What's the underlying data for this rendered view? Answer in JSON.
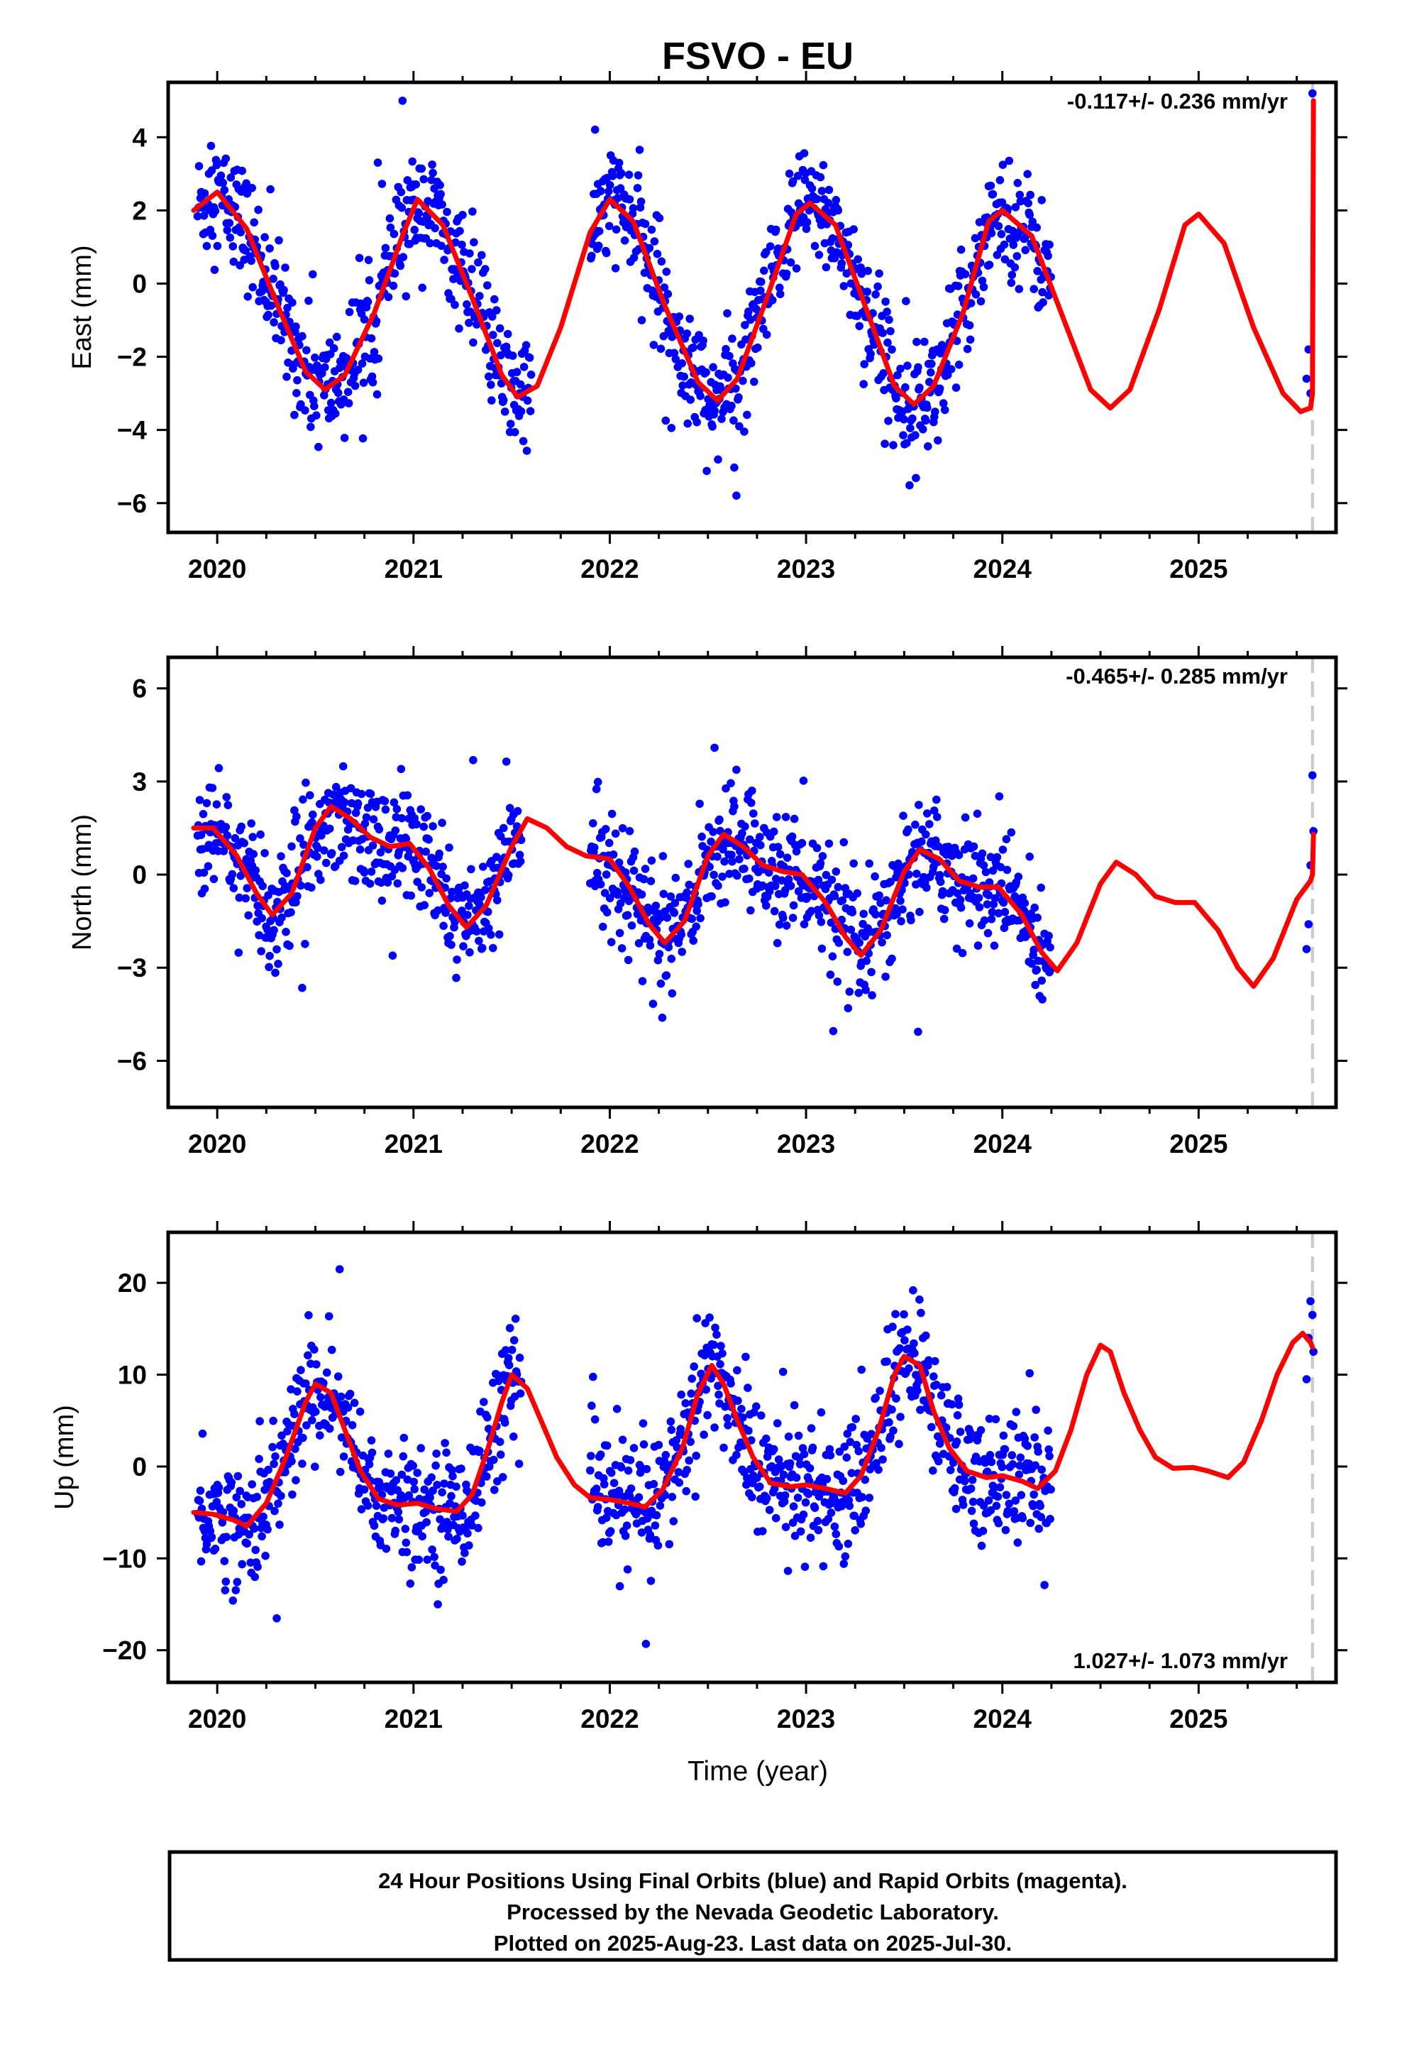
{
  "figure": {
    "title": "FSVO - EU",
    "footer": [
      "24 Hour Positions Using Final Orbits (blue) and Rapid Orbits (magenta).",
      "Processed by the Nevada Geodetic Laboratory.",
      "Plotted on 2025-Aug-23. Last data on 2025-Jul-30."
    ],
    "colors": {
      "observations": "#0000ff",
      "model": "#ff0000",
      "last_data_marker": "#c8c8c8",
      "frame": "#000000"
    }
  },
  "chart_data": [
    {
      "type": "scatter",
      "panel": "east",
      "ylabel": "East (mm)",
      "xlabel": "",
      "rate": "-0.117+/- 0.236 mm/yr",
      "rate_position": "top-right",
      "xlim": [
        2019.75,
        2025.7
      ],
      "ylim": [
        -6.8,
        5.5
      ],
      "x_ticks": [
        "2020",
        "2021",
        "2022",
        "2023",
        "2024",
        "2025"
      ],
      "y_ticks": [
        "4",
        "2",
        "0",
        "-2",
        "-4",
        "-6"
      ],
      "y_tick_values": [
        4,
        2,
        0,
        -2,
        -4,
        -6
      ],
      "last_data_epoch": 2025.58,
      "series": [
        {
          "kind": "observations",
          "color": "#0000ff",
          "segments": [
            [
              2019.9,
              2021.6
            ],
            [
              2021.9,
              2024.25
            ]
          ],
          "extra": [
            [
              2025.55,
              -2.6
            ],
            [
              2025.56,
              -1.8
            ],
            [
              2025.57,
              -3.0
            ],
            [
              2025.58,
              5.2
            ]
          ]
        },
        {
          "kind": "model",
          "color": "#ff0000",
          "points": [
            [
              2019.88,
              2.0
            ],
            [
              2020.0,
              2.5
            ],
            [
              2020.15,
              1.5
            ],
            [
              2020.3,
              -0.5
            ],
            [
              2020.45,
              -2.4
            ],
            [
              2020.55,
              -2.9
            ],
            [
              2020.65,
              -2.5
            ],
            [
              2020.8,
              -0.8
            ],
            [
              2020.95,
              1.4
            ],
            [
              2021.02,
              2.3
            ],
            [
              2021.15,
              1.6
            ],
            [
              2021.3,
              -0.4
            ],
            [
              2021.45,
              -2.5
            ],
            [
              2021.53,
              -3.1
            ],
            [
              2021.63,
              -2.8
            ],
            [
              2021.75,
              -1.2
            ],
            [
              2021.9,
              1.4
            ],
            [
              2022.0,
              2.3
            ],
            [
              2022.12,
              1.7
            ],
            [
              2022.28,
              -0.6
            ],
            [
              2022.45,
              -2.7
            ],
            [
              2022.55,
              -3.2
            ],
            [
              2022.65,
              -2.6
            ],
            [
              2022.8,
              -0.4
            ],
            [
              2022.95,
              1.9
            ],
            [
              2023.02,
              2.2
            ],
            [
              2023.15,
              1.6
            ],
            [
              2023.3,
              -0.6
            ],
            [
              2023.45,
              -2.8
            ],
            [
              2023.55,
              -3.3
            ],
            [
              2023.65,
              -2.8
            ],
            [
              2023.8,
              -0.8
            ],
            [
              2023.93,
              1.7
            ],
            [
              2024.0,
              2.0
            ],
            [
              2024.15,
              1.3
            ],
            [
              2024.3,
              -0.8
            ],
            [
              2024.45,
              -2.9
            ],
            [
              2024.55,
              -3.4
            ],
            [
              2024.65,
              -2.9
            ],
            [
              2024.8,
              -0.7
            ],
            [
              2024.93,
              1.6
            ],
            [
              2025.0,
              1.9
            ],
            [
              2025.13,
              1.1
            ],
            [
              2025.28,
              -1.2
            ],
            [
              2025.43,
              -3.0
            ],
            [
              2025.52,
              -3.5
            ],
            [
              2025.57,
              -3.4
            ],
            [
              2025.58,
              -3.0
            ],
            [
              2025.585,
              5.0
            ]
          ]
        }
      ]
    },
    {
      "type": "scatter",
      "panel": "north",
      "ylabel": "North (mm)",
      "xlabel": "",
      "rate": "-0.465+/- 0.285 mm/yr",
      "rate_position": "top-right",
      "xlim": [
        2019.75,
        2025.7
      ],
      "ylim": [
        -7.5,
        7.0
      ],
      "x_ticks": [
        "2020",
        "2021",
        "2022",
        "2023",
        "2024",
        "2025"
      ],
      "y_ticks": [
        "6",
        "3",
        "0",
        "-3",
        "-6"
      ],
      "y_tick_values": [
        6,
        3,
        0,
        -3,
        -6
      ],
      "last_data_epoch": 2025.58,
      "series": [
        {
          "kind": "observations",
          "color": "#0000ff",
          "segments": [
            [
              2019.9,
              2021.55
            ],
            [
              2021.9,
              2024.25
            ]
          ],
          "extra": [
            [
              2025.55,
              -2.4
            ],
            [
              2025.56,
              -1.6
            ],
            [
              2025.57,
              0.3
            ],
            [
              2025.58,
              3.2
            ],
            [
              2025.585,
              1.4
            ]
          ]
        },
        {
          "kind": "model",
          "color": "#ff0000",
          "points": [
            [
              2019.88,
              1.5
            ],
            [
              2019.98,
              1.5
            ],
            [
              2020.1,
              0.6
            ],
            [
              2020.2,
              -0.6
            ],
            [
              2020.28,
              -1.3
            ],
            [
              2020.38,
              -0.6
            ],
            [
              2020.5,
              1.5
            ],
            [
              2020.58,
              2.2
            ],
            [
              2020.68,
              1.8
            ],
            [
              2020.78,
              1.2
            ],
            [
              2020.88,
              0.9
            ],
            [
              2020.98,
              1.0
            ],
            [
              2021.08,
              0.2
            ],
            [
              2021.18,
              -1.0
            ],
            [
              2021.27,
              -1.7
            ],
            [
              2021.37,
              -1.0
            ],
            [
              2021.5,
              0.9
            ],
            [
              2021.58,
              1.8
            ],
            [
              2021.68,
              1.5
            ],
            [
              2021.78,
              0.9
            ],
            [
              2021.88,
              0.6
            ],
            [
              2022.0,
              0.5
            ],
            [
              2022.1,
              -0.4
            ],
            [
              2022.2,
              -1.6
            ],
            [
              2022.28,
              -2.2
            ],
            [
              2022.38,
              -1.5
            ],
            [
              2022.5,
              0.6
            ],
            [
              2022.58,
              1.3
            ],
            [
              2022.68,
              0.9
            ],
            [
              2022.78,
              0.3
            ],
            [
              2022.88,
              0.1
            ],
            [
              2022.98,
              0.0
            ],
            [
              2023.1,
              -0.9
            ],
            [
              2023.2,
              -2.0
            ],
            [
              2023.28,
              -2.6
            ],
            [
              2023.38,
              -1.8
            ],
            [
              2023.5,
              0.1
            ],
            [
              2023.58,
              0.8
            ],
            [
              2023.68,
              0.5
            ],
            [
              2023.78,
              -0.2
            ],
            [
              2023.88,
              -0.4
            ],
            [
              2023.98,
              -0.4
            ],
            [
              2024.1,
              -1.3
            ],
            [
              2024.2,
              -2.5
            ],
            [
              2024.28,
              -3.1
            ],
            [
              2024.38,
              -2.2
            ],
            [
              2024.5,
              -0.3
            ],
            [
              2024.58,
              0.4
            ],
            [
              2024.68,
              0.0
            ],
            [
              2024.78,
              -0.7
            ],
            [
              2024.88,
              -0.9
            ],
            [
              2024.98,
              -0.9
            ],
            [
              2025.1,
              -1.8
            ],
            [
              2025.2,
              -3.0
            ],
            [
              2025.28,
              -3.6
            ],
            [
              2025.38,
              -2.7
            ],
            [
              2025.5,
              -0.8
            ],
            [
              2025.57,
              -0.2
            ],
            [
              2025.58,
              0.0
            ],
            [
              2025.585,
              1.3
            ]
          ]
        }
      ]
    },
    {
      "type": "scatter",
      "panel": "up",
      "ylabel": "Up (mm)",
      "xlabel": "Time (year)",
      "rate": "1.027+/- 1.073 mm/yr",
      "rate_position": "bottom-right",
      "xlim": [
        2019.75,
        2025.7
      ],
      "ylim": [
        -23.5,
        25.5
      ],
      "x_ticks": [
        "2020",
        "2021",
        "2022",
        "2023",
        "2024",
        "2025"
      ],
      "y_ticks": [
        "20",
        "10",
        "0",
        "-10",
        "-20"
      ],
      "y_tick_values": [
        20,
        10,
        0,
        -10,
        -20
      ],
      "last_data_epoch": 2025.58,
      "series": [
        {
          "kind": "observations",
          "color": "#0000ff",
          "segments": [
            [
              2019.9,
              2021.55
            ],
            [
              2021.9,
              2024.25
            ]
          ],
          "extra": [
            [
              2025.55,
              9.5
            ],
            [
              2025.56,
              14.0
            ],
            [
              2025.57,
              18.0
            ],
            [
              2025.58,
              16.5
            ],
            [
              2025.585,
              12.5
            ]
          ]
        },
        {
          "kind": "model",
          "color": "#ff0000",
          "points": [
            [
              2019.88,
              -5.0
            ],
            [
              2019.98,
              -5.2
            ],
            [
              2020.08,
              -5.8
            ],
            [
              2020.15,
              -6.5
            ],
            [
              2020.25,
              -4.0
            ],
            [
              2020.35,
              1.0
            ],
            [
              2020.45,
              7.0
            ],
            [
              2020.5,
              9.0
            ],
            [
              2020.58,
              8.0
            ],
            [
              2020.65,
              4.0
            ],
            [
              2020.73,
              -0.5
            ],
            [
              2020.82,
              -3.5
            ],
            [
              2020.92,
              -4.2
            ],
            [
              2021.02,
              -4.0
            ],
            [
              2021.12,
              -4.6
            ],
            [
              2021.22,
              -4.9
            ],
            [
              2021.3,
              -3.0
            ],
            [
              2021.38,
              2.0
            ],
            [
              2021.45,
              7.0
            ],
            [
              2021.5,
              10.0
            ],
            [
              2021.58,
              8.5
            ],
            [
              2021.65,
              5.0
            ],
            [
              2021.73,
              1.0
            ],
            [
              2021.82,
              -2.0
            ],
            [
              2021.9,
              -3.4
            ],
            [
              2022.0,
              -3.6
            ],
            [
              2022.1,
              -4.0
            ],
            [
              2022.18,
              -4.4
            ],
            [
              2022.27,
              -2.5
            ],
            [
              2022.37,
              2.0
            ],
            [
              2022.45,
              8.0
            ],
            [
              2022.52,
              11.0
            ],
            [
              2022.58,
              9.0
            ],
            [
              2022.65,
              5.0
            ],
            [
              2022.73,
              1.0
            ],
            [
              2022.82,
              -1.8
            ],
            [
              2022.92,
              -2.2
            ],
            [
              2023.0,
              -2.0
            ],
            [
              2023.1,
              -2.4
            ],
            [
              2023.2,
              -2.9
            ],
            [
              2023.28,
              -1.0
            ],
            [
              2023.37,
              4.0
            ],
            [
              2023.45,
              10.0
            ],
            [
              2023.5,
              12.0
            ],
            [
              2023.58,
              11.0
            ],
            [
              2023.65,
              6.0
            ],
            [
              2023.73,
              2.0
            ],
            [
              2023.82,
              -0.5
            ],
            [
              2023.92,
              -1.2
            ],
            [
              2024.0,
              -1.0
            ],
            [
              2024.1,
              -1.6
            ],
            [
              2024.18,
              -2.4
            ],
            [
              2024.27,
              -0.5
            ],
            [
              2024.35,
              4.0
            ],
            [
              2024.43,
              10.0
            ],
            [
              2024.5,
              13.2
            ],
            [
              2024.55,
              12.5
            ],
            [
              2024.62,
              8.0
            ],
            [
              2024.7,
              4.0
            ],
            [
              2024.78,
              1.0
            ],
            [
              2024.87,
              -0.2
            ],
            [
              2024.97,
              -0.1
            ],
            [
              2025.05,
              -0.5
            ],
            [
              2025.15,
              -1.2
            ],
            [
              2025.23,
              0.5
            ],
            [
              2025.32,
              5.0
            ],
            [
              2025.4,
              10.0
            ],
            [
              2025.48,
              13.5
            ],
            [
              2025.53,
              14.5
            ],
            [
              2025.57,
              13.5
            ],
            [
              2025.58,
              13.0
            ]
          ]
        }
      ]
    }
  ]
}
